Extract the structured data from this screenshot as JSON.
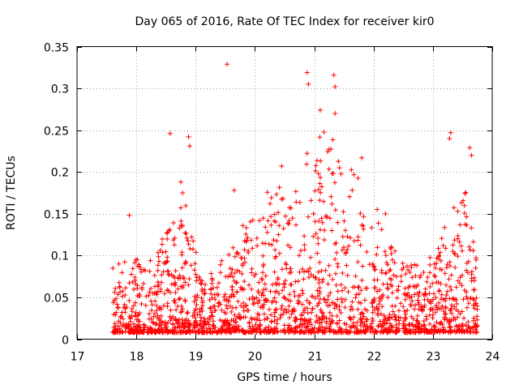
{
  "chart_data": {
    "type": "scatter",
    "title": "Day 065 of 2016, Rate Of TEC Index for receiver kir0",
    "xlabel": "GPS time / hours",
    "ylabel": "ROTI / TECUs",
    "xlim": [
      17,
      24
    ],
    "ylim": [
      0,
      0.35
    ],
    "grid": true,
    "marker": "plus",
    "color": "#ff0000",
    "x_ticks": [
      {
        "value": 17,
        "label": "17"
      },
      {
        "value": 18,
        "label": "18"
      },
      {
        "value": 19,
        "label": "19"
      },
      {
        "value": 20,
        "label": "20"
      },
      {
        "value": 21,
        "label": "21"
      },
      {
        "value": 22,
        "label": "22"
      },
      {
        "value": 23,
        "label": "23"
      },
      {
        "value": 24,
        "label": "24"
      }
    ],
    "y_ticks": [
      {
        "value": 0,
        "label": "0"
      },
      {
        "value": 0.05,
        "label": "0.05"
      },
      {
        "value": 0.1,
        "label": "0.1"
      },
      {
        "value": 0.15,
        "label": "0.15"
      },
      {
        "value": 0.2,
        "label": "0.2"
      },
      {
        "value": 0.25,
        "label": "0.25"
      },
      {
        "value": 0.3,
        "label": "0.3"
      },
      {
        "value": 0.35,
        "label": "0.35"
      }
    ],
    "data_range": {
      "x_min": 17.6,
      "x_max": 23.75
    },
    "notable_points": [
      {
        "x": 18.57,
        "y": 0.246
      },
      {
        "x": 18.88,
        "y": 0.242
      },
      {
        "x": 18.9,
        "y": 0.231
      },
      {
        "x": 19.53,
        "y": 0.329
      },
      {
        "x": 20.88,
        "y": 0.319
      },
      {
        "x": 20.9,
        "y": 0.305
      },
      {
        "x": 21.33,
        "y": 0.316
      },
      {
        "x": 21.35,
        "y": 0.302
      },
      {
        "x": 21.1,
        "y": 0.274
      },
      {
        "x": 21.35,
        "y": 0.27
      },
      {
        "x": 23.3,
        "y": 0.247
      },
      {
        "x": 23.28,
        "y": 0.24
      },
      {
        "x": 23.62,
        "y": 0.229
      },
      {
        "x": 23.65,
        "y": 0.22
      },
      {
        "x": 17.88,
        "y": 0.148
      },
      {
        "x": 18.75,
        "y": 0.188
      },
      {
        "x": 18.78,
        "y": 0.175
      },
      {
        "x": 19.65,
        "y": 0.178
      },
      {
        "x": 20.45,
        "y": 0.207
      },
      {
        "x": 21.8,
        "y": 0.217
      },
      {
        "x": 22.2,
        "y": 0.15
      }
    ],
    "band_envelope": {
      "x": [
        17.6,
        17.9,
        18.2,
        18.5,
        18.8,
        19.1,
        19.4,
        19.7,
        20.0,
        20.3,
        20.6,
        20.9,
        21.2,
        21.5,
        21.8,
        22.1,
        22.4,
        22.7,
        23.0,
        23.3,
        23.6,
        23.75
      ],
      "y_max": [
        0.085,
        0.1,
        0.09,
        0.13,
        0.18,
        0.07,
        0.09,
        0.13,
        0.15,
        0.2,
        0.16,
        0.23,
        0.27,
        0.21,
        0.2,
        0.15,
        0.1,
        0.09,
        0.1,
        0.16,
        0.18,
        0.1
      ],
      "y_min": [
        0.008,
        0.008,
        0.008,
        0.008,
        0.008,
        0.008,
        0.008,
        0.008,
        0.008,
        0.008,
        0.008,
        0.008,
        0.008,
        0.008,
        0.008,
        0.008,
        0.008,
        0.008,
        0.008,
        0.008,
        0.008,
        0.008
      ]
    }
  }
}
